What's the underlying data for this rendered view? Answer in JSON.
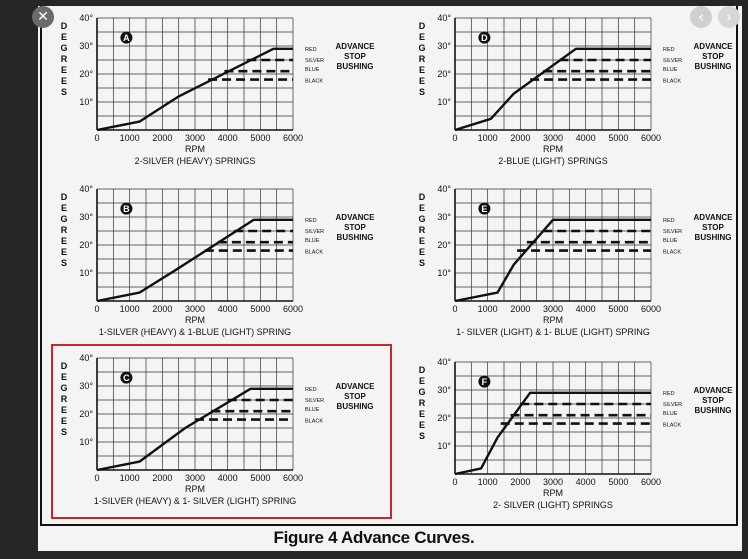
{
  "viewer": {
    "close_icon": "close-icon",
    "close_glyph": "✕",
    "prev_icon": "chevron-left-icon",
    "prev_glyph": "‹",
    "next_icon": "chevron-right-icon",
    "next_glyph": "›",
    "highlight_color": "#c8262a"
  },
  "caption": "Figure 4 Advance Curves.",
  "chart_data": [
    {
      "type": "line",
      "id": "A",
      "title": "2-SILVER (HEAVY) SPRINGS",
      "xlabel": "RPM",
      "ylabel": "DEGREES",
      "xlim": [
        0,
        6000
      ],
      "ylim": [
        0,
        40
      ],
      "x_ticks": [
        "0",
        "1000",
        "2000",
        "3000",
        "4000",
        "5000",
        "6000"
      ],
      "y_ticks": [
        "10°",
        "20°",
        "30°",
        "40°"
      ],
      "curve": [
        [
          0,
          0
        ],
        [
          1300,
          3
        ],
        [
          2500,
          12
        ],
        [
          5400,
          29
        ],
        [
          6000,
          29
        ]
      ],
      "stops": [
        {
          "label": "RED",
          "value": 29,
          "start": 5400
        },
        {
          "label": "SILVER",
          "value": 25,
          "start": 4600
        },
        {
          "label": "BLUE",
          "value": 21,
          "start": 3900
        },
        {
          "label": "BLACK",
          "value": 18,
          "start": 3400
        }
      ],
      "annotation": [
        "ADVANCE",
        "STOP",
        "BUSHING"
      ]
    },
    {
      "type": "line",
      "id": "D",
      "title": "2-BLUE (LIGHT) SPRINGS",
      "xlabel": "RPM",
      "ylabel": "DEGREES",
      "xlim": [
        0,
        6000
      ],
      "ylim": [
        0,
        40
      ],
      "x_ticks": [
        "0",
        "1000",
        "2000",
        "3000",
        "4000",
        "5000",
        "6000"
      ],
      "y_ticks": [
        "10°",
        "20°",
        "30°",
        "40°"
      ],
      "curve": [
        [
          0,
          0
        ],
        [
          1100,
          4
        ],
        [
          1800,
          13
        ],
        [
          3700,
          29
        ],
        [
          6000,
          29
        ]
      ],
      "stops": [
        {
          "label": "RED",
          "value": 29,
          "start": 3700
        },
        {
          "label": "SILVER",
          "value": 25,
          "start": 3200
        },
        {
          "label": "BLUE",
          "value": 21,
          "start": 2700
        },
        {
          "label": "BLACK",
          "value": 18,
          "start": 2300
        }
      ],
      "annotation": [
        "ADVANCE",
        "STOP",
        "BUSHING"
      ]
    },
    {
      "type": "line",
      "id": "B",
      "title": "1-SILVER (HEAVY) & 1-BLUE (LIGHT) SPRING",
      "xlabel": "RPM",
      "ylabel": "DEGREES",
      "xlim": [
        0,
        6000
      ],
      "ylim": [
        0,
        40
      ],
      "x_ticks": [
        "0",
        "1000",
        "2000",
        "3000",
        "4000",
        "5000",
        "6000"
      ],
      "y_ticks": [
        "10°",
        "20°",
        "30°",
        "40°"
      ],
      "curve": [
        [
          0,
          0
        ],
        [
          1300,
          3
        ],
        [
          2400,
          11
        ],
        [
          4800,
          29
        ],
        [
          6000,
          29
        ]
      ],
      "stops": [
        {
          "label": "RED",
          "value": 29,
          "start": 4800
        },
        {
          "label": "SILVER",
          "value": 25,
          "start": 4200
        },
        {
          "label": "BLUE",
          "value": 21,
          "start": 3700
        },
        {
          "label": "BLACK",
          "value": 18,
          "start": 3300
        }
      ],
      "annotation": [
        "ADVANCE",
        "STOP",
        "BUSHING"
      ]
    },
    {
      "type": "line",
      "id": "E",
      "title": "1- SILVER (LIGHT) & 1- BLUE (LIGHT) SPRING",
      "xlabel": "RPM",
      "ylabel": "DEGREES",
      "xlim": [
        0,
        6000
      ],
      "ylim": [
        0,
        40
      ],
      "x_ticks": [
        "0",
        "1000",
        "2000",
        "3000",
        "4000",
        "5000",
        "6000"
      ],
      "y_ticks": [
        "10°",
        "20°",
        "30°",
        "40°"
      ],
      "curve": [
        [
          0,
          0
        ],
        [
          1300,
          3
        ],
        [
          1800,
          13
        ],
        [
          3000,
          29
        ],
        [
          6000,
          29
        ]
      ],
      "stops": [
        {
          "label": "RED",
          "value": 29,
          "start": 3000
        },
        {
          "label": "SILVER",
          "value": 25,
          "start": 2700
        },
        {
          "label": "BLUE",
          "value": 21,
          "start": 2200
        },
        {
          "label": "BLACK",
          "value": 18,
          "start": 1900
        }
      ],
      "annotation": [
        "ADVANCE",
        "STOP",
        "BUSHING"
      ]
    },
    {
      "type": "line",
      "id": "C",
      "title": "1-SILVER (HEAVY) & 1- SILVER (LIGHT) SPRING",
      "xlabel": "RPM",
      "ylabel": "DEGREES",
      "xlim": [
        0,
        6000
      ],
      "ylim": [
        0,
        40
      ],
      "x_ticks": [
        "0",
        "1000",
        "2000",
        "3000",
        "4000",
        "5000",
        "6000"
      ],
      "y_ticks": [
        "10°",
        "20°",
        "30°",
        "40°"
      ],
      "curve": [
        [
          0,
          0
        ],
        [
          1300,
          3
        ],
        [
          2700,
          15
        ],
        [
          4700,
          29
        ],
        [
          6000,
          29
        ]
      ],
      "stops": [
        {
          "label": "RED",
          "value": 29,
          "start": 4700
        },
        {
          "label": "SILVER",
          "value": 25,
          "start": 4000
        },
        {
          "label": "BLUE",
          "value": 21,
          "start": 3500
        },
        {
          "label": "BLACK",
          "value": 18,
          "start": 3000
        }
      ],
      "annotation": [
        "ADVANCE",
        "STOP",
        "BUSHING"
      ]
    },
    {
      "type": "line",
      "id": "F",
      "title": "2- SILVER (LIGHT) SPRINGS",
      "xlabel": "RPM",
      "ylabel": "DEGREES",
      "xlim": [
        0,
        6000
      ],
      "ylim": [
        0,
        40
      ],
      "x_ticks": [
        "0",
        "1000",
        "2000",
        "3000",
        "4000",
        "5000",
        "6000"
      ],
      "y_ticks": [
        "10°",
        "20°",
        "30°",
        "40°"
      ],
      "curve": [
        [
          0,
          0
        ],
        [
          800,
          2
        ],
        [
          1300,
          13
        ],
        [
          2300,
          29
        ],
        [
          6000,
          29
        ]
      ],
      "stops": [
        {
          "label": "RED",
          "value": 29,
          "start": 2300
        },
        {
          "label": "SILVER",
          "value": 25,
          "start": 2000
        },
        {
          "label": "BLUE",
          "value": 21,
          "start": 1700
        },
        {
          "label": "BLACK",
          "value": 18,
          "start": 1400
        }
      ],
      "annotation": [
        "ADVANCE",
        "STOP",
        "BUSHING"
      ]
    }
  ]
}
